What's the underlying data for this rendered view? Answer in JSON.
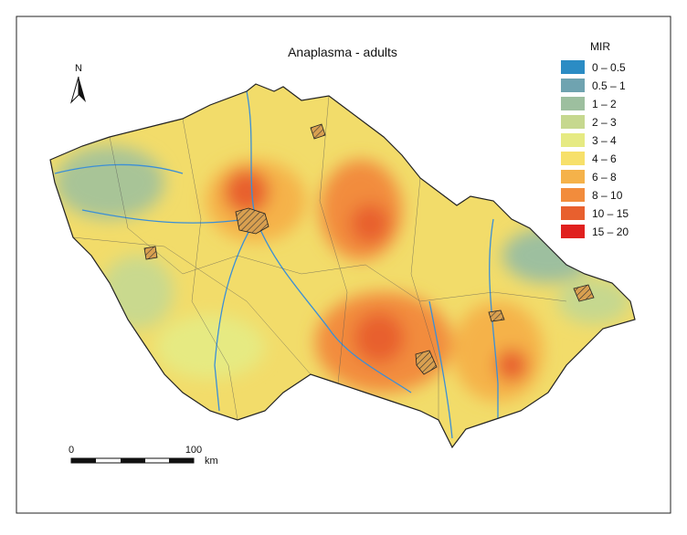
{
  "title": "Anaplasma - adults",
  "north_label": "N",
  "legend": {
    "title": "MIR",
    "items": [
      {
        "label": "0 – 0.5",
        "color": "#2b8cc4"
      },
      {
        "label": "0.5 – 1",
        "color": "#6fa3b0"
      },
      {
        "label": "1 – 2",
        "color": "#9dbf9f"
      },
      {
        "label": "2 – 3",
        "color": "#c6d88f"
      },
      {
        "label": "3 – 4",
        "color": "#e6ea82"
      },
      {
        "label": "4 – 6",
        "color": "#f7e06a"
      },
      {
        "label": "6 – 8",
        "color": "#f5b24a"
      },
      {
        "label": "8 – 10",
        "color": "#f28c3c"
      },
      {
        "label": "10 – 15",
        "color": "#e8602e"
      },
      {
        "label": "15 – 20",
        "color": "#e0201e"
      }
    ]
  },
  "scale_bar": {
    "start": "0",
    "end": "100",
    "unit": "km"
  }
}
